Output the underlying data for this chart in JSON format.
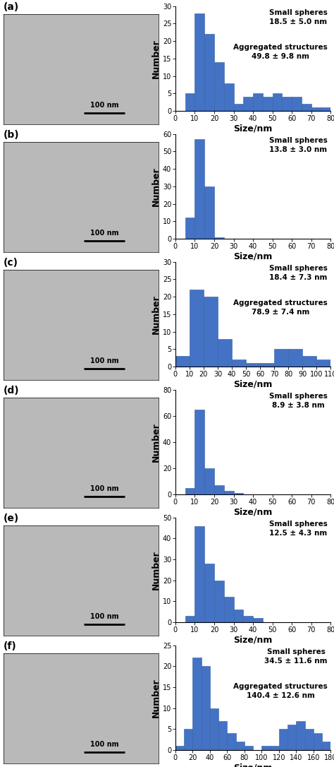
{
  "panels": [
    {
      "label": "a",
      "annotations": [
        "Small spheres\n18.5 ± 5.0 nm",
        "Aggregated structures\n49.8 ± 9.8 nm"
      ],
      "bar_edges": [
        0,
        5,
        10,
        15,
        20,
        25,
        30,
        35,
        40,
        45,
        50,
        55,
        60,
        65,
        70,
        75,
        80
      ],
      "bar_heights": [
        0,
        5,
        28,
        22,
        14,
        8,
        2,
        4,
        5,
        4,
        5,
        4,
        4,
        2,
        1,
        1
      ],
      "xlim": [
        0,
        80
      ],
      "xticks": [
        0,
        10,
        20,
        30,
        40,
        50,
        60,
        70,
        80
      ],
      "ylim": [
        0,
        30
      ],
      "yticks": [
        0,
        5,
        10,
        15,
        20,
        25,
        30
      ]
    },
    {
      "label": "b",
      "annotations": [
        "Small spheres\n13.8 ± 3.0 nm"
      ],
      "bar_edges": [
        0,
        5,
        10,
        15,
        20,
        25,
        30,
        35,
        40,
        45,
        50,
        55,
        60,
        65,
        70,
        75,
        80
      ],
      "bar_heights": [
        0,
        12,
        57,
        30,
        1,
        0,
        0,
        0,
        0,
        0,
        0,
        0,
        0,
        0,
        0,
        0
      ],
      "xlim": [
        0,
        80
      ],
      "xticks": [
        0,
        10,
        20,
        30,
        40,
        50,
        60,
        70,
        80
      ],
      "ylim": [
        0,
        60
      ],
      "yticks": [
        0,
        10,
        20,
        30,
        40,
        50,
        60
      ]
    },
    {
      "label": "c",
      "annotations": [
        "Small spheres\n18.4 ± 7.3 nm",
        "Aggregated structures\n78.9 ± 7.4 nm"
      ],
      "bar_edges": [
        0,
        10,
        20,
        30,
        40,
        50,
        60,
        70,
        80,
        90,
        100,
        110
      ],
      "bar_heights": [
        3,
        22,
        20,
        8,
        2,
        1,
        1,
        5,
        5,
        3,
        2
      ],
      "xlim": [
        0,
        110
      ],
      "xticks": [
        0,
        10,
        20,
        30,
        40,
        50,
        60,
        70,
        80,
        90,
        100,
        110
      ],
      "ylim": [
        0,
        30
      ],
      "yticks": [
        0,
        5,
        10,
        15,
        20,
        25,
        30
      ]
    },
    {
      "label": "d",
      "annotations": [
        "Small spheres\n8.9 ± 3.8 nm"
      ],
      "bar_edges": [
        0,
        5,
        10,
        15,
        20,
        25,
        30,
        35,
        40,
        45,
        50,
        55,
        60,
        65,
        70,
        75,
        80
      ],
      "bar_heights": [
        0,
        5,
        65,
        20,
        7,
        3,
        1,
        0,
        0,
        0,
        0,
        0,
        0,
        0,
        0,
        0
      ],
      "xlim": [
        0,
        80
      ],
      "xticks": [
        0,
        10,
        20,
        30,
        40,
        50,
        60,
        70,
        80
      ],
      "ylim": [
        0,
        80
      ],
      "yticks": [
        0,
        20,
        40,
        60,
        80
      ]
    },
    {
      "label": "e",
      "annotations": [
        "Small spheres\n12.5 ± 4.3 nm"
      ],
      "bar_edges": [
        0,
        5,
        10,
        15,
        20,
        25,
        30,
        35,
        40,
        45,
        50,
        55,
        60,
        65,
        70,
        75,
        80
      ],
      "bar_heights": [
        0,
        3,
        46,
        28,
        20,
        12,
        6,
        3,
        2,
        0,
        0,
        0,
        0,
        0,
        0,
        0
      ],
      "xlim": [
        0,
        80
      ],
      "xticks": [
        0,
        10,
        20,
        30,
        40,
        50,
        60,
        70,
        80
      ],
      "ylim": [
        0,
        50
      ],
      "yticks": [
        0,
        10,
        20,
        30,
        40,
        50
      ]
    },
    {
      "label": "f",
      "annotations": [
        "Small spheres\n34.5 ± 11.6 nm",
        "Aggregated structures\n140.4 ± 12.6 nm"
      ],
      "bar_edges": [
        0,
        10,
        20,
        30,
        40,
        50,
        60,
        70,
        80,
        90,
        100,
        110,
        120,
        130,
        140,
        150,
        160,
        170,
        180
      ],
      "bar_heights": [
        1,
        5,
        22,
        20,
        10,
        7,
        4,
        2,
        1,
        0,
        1,
        1,
        5,
        6,
        7,
        5,
        4,
        2
      ],
      "xlim": [
        0,
        180
      ],
      "xticks": [
        0,
        20,
        40,
        60,
        80,
        100,
        120,
        140,
        160,
        180
      ],
      "ylim": [
        0,
        25
      ],
      "yticks": [
        0,
        5,
        10,
        15,
        20,
        25
      ]
    }
  ],
  "bar_color": "#4472C4",
  "xlabel": "Size/nm",
  "ylabel": "Number",
  "label_fontsize": 9,
  "tick_fontsize": 7,
  "annot_fontsize": 7.5,
  "bar_edgecolor": "#3060a0",
  "bar_linewidth": 0.4,
  "img_gray": 185,
  "scalebar_text": "100 nm"
}
